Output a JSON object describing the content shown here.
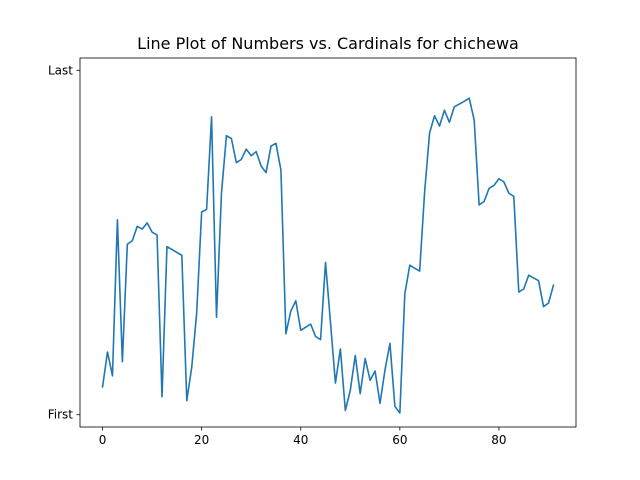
{
  "chart_data": {
    "type": "line",
    "title": "Line Plot of Numbers vs. Cardinals for chichewa",
    "xlabel": "",
    "ylabel": "",
    "xlim": [
      -4.55,
      95.55
    ],
    "ylim": [
      -0.0357,
      1.0357
    ],
    "x_ticks": [
      0,
      20,
      40,
      60,
      80
    ],
    "y_ticks": [
      {
        "value": 0,
        "label": "First"
      },
      {
        "value": 1,
        "label": "Last"
      }
    ],
    "grid": false,
    "legend": "none",
    "line_color": "#1f77b4",
    "series": [
      {
        "x": [
          0,
          1,
          2,
          3,
          4,
          5,
          6,
          7,
          8,
          9,
          10,
          11,
          12,
          13,
          14,
          15,
          16,
          17,
          18,
          19,
          20,
          21,
          22,
          23,
          24,
          25,
          26,
          27,
          28,
          29,
          30,
          31,
          32,
          33,
          34,
          35,
          36,
          37,
          38,
          39,
          40,
          41,
          42,
          43,
          44,
          45,
          46,
          47,
          48,
          49,
          50,
          51,
          52,
          53,
          54,
          55,
          56,
          57,
          58,
          59,
          60,
          61,
          62,
          63,
          64,
          65,
          66,
          67,
          68,
          69,
          70,
          71,
          72,
          73,
          74,
          75,
          76,
          77,
          78,
          79,
          80,
          81,
          82,
          83,
          84,
          85,
          86,
          87,
          88,
          89,
          90,
          91
        ],
        "y": [
          0.081,
          0.182,
          0.113,
          0.566,
          0.154,
          0.495,
          0.505,
          0.547,
          0.539,
          0.557,
          0.53,
          0.522,
          0.052,
          0.488,
          0.48,
          0.471,
          0.463,
          0.041,
          0.138,
          0.296,
          0.589,
          0.596,
          0.865,
          0.283,
          0.643,
          0.81,
          0.802,
          0.732,
          0.741,
          0.771,
          0.752,
          0.764,
          0.722,
          0.703,
          0.78,
          0.788,
          0.71,
          0.235,
          0.301,
          0.331,
          0.245,
          0.254,
          0.263,
          0.227,
          0.218,
          0.442,
          0.268,
          0.092,
          0.191,
          0.012,
          0.071,
          0.172,
          0.061,
          0.163,
          0.1,
          0.127,
          0.033,
          0.13,
          0.207,
          0.024,
          0.005,
          0.35,
          0.434,
          0.425,
          0.417,
          0.647,
          0.818,
          0.868,
          0.838,
          0.884,
          0.849,
          0.894,
          0.902,
          0.91,
          0.919,
          0.856,
          0.609,
          0.619,
          0.657,
          0.666,
          0.685,
          0.676,
          0.643,
          0.634,
          0.356,
          0.365,
          0.405,
          0.397,
          0.389,
          0.314,
          0.324,
          0.376
        ]
      }
    ]
  }
}
